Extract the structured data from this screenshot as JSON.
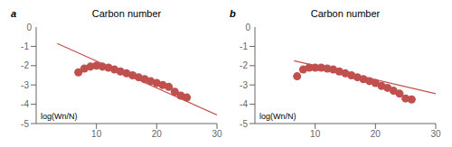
{
  "chart_data": [
    {
      "type": "scatter",
      "panel_label": "a",
      "title": "Carbon number",
      "ylabel": "log(Wn/N)",
      "xlim": [
        0,
        30
      ],
      "ylim": [
        -5,
        0
      ],
      "xticks": [
        10,
        20,
        30
      ],
      "yticks": [
        -1,
        -2,
        -3,
        -4,
        -5
      ],
      "annotations": [
        {
          "text": "0",
          "x": 0,
          "y": 0
        }
      ],
      "series": [
        {
          "type": "scatter",
          "marker": "circle",
          "color": "#c0504d",
          "x": [
            7,
            8,
            9,
            10,
            11,
            12,
            13,
            14,
            15,
            16,
            17,
            18,
            19,
            20,
            21,
            22,
            23,
            24,
            25
          ],
          "values": [
            -2.35,
            -2.15,
            -2.05,
            -2.0,
            -2.05,
            -2.1,
            -2.2,
            -2.3,
            -2.4,
            -2.5,
            -2.6,
            -2.7,
            -2.8,
            -2.9,
            -3.0,
            -3.1,
            -3.35,
            -3.55,
            -3.65
          ]
        },
        {
          "type": "line",
          "color": "#c0504d",
          "x": [
            3.5,
            30
          ],
          "values": [
            -0.85,
            -4.55
          ]
        }
      ]
    },
    {
      "type": "scatter",
      "panel_label": "b",
      "title": "Carbon number",
      "ylabel": "log(Wn/N)",
      "xlim": [
        0,
        30
      ],
      "ylim": [
        -5,
        0
      ],
      "xticks": [
        10,
        20,
        30
      ],
      "yticks": [
        -1,
        -2,
        -3,
        -4,
        -5
      ],
      "annotations": [
        {
          "text": "0",
          "x": 0,
          "y": 0
        }
      ],
      "series": [
        {
          "type": "scatter",
          "marker": "circle",
          "color": "#c0504d",
          "x": [
            7,
            8,
            9,
            10,
            11,
            12,
            13,
            14,
            15,
            16,
            17,
            18,
            19,
            20,
            21,
            22,
            23,
            24,
            25,
            26
          ],
          "values": [
            -2.55,
            -2.2,
            -2.1,
            -2.1,
            -2.1,
            -2.15,
            -2.2,
            -2.3,
            -2.4,
            -2.5,
            -2.6,
            -2.7,
            -2.8,
            -2.9,
            -3.05,
            -3.15,
            -3.3,
            -3.45,
            -3.7,
            -3.75
          ]
        },
        {
          "type": "line",
          "color": "#c0504d",
          "x": [
            6.5,
            30
          ],
          "values": [
            -1.75,
            -3.45
          ]
        }
      ]
    }
  ]
}
